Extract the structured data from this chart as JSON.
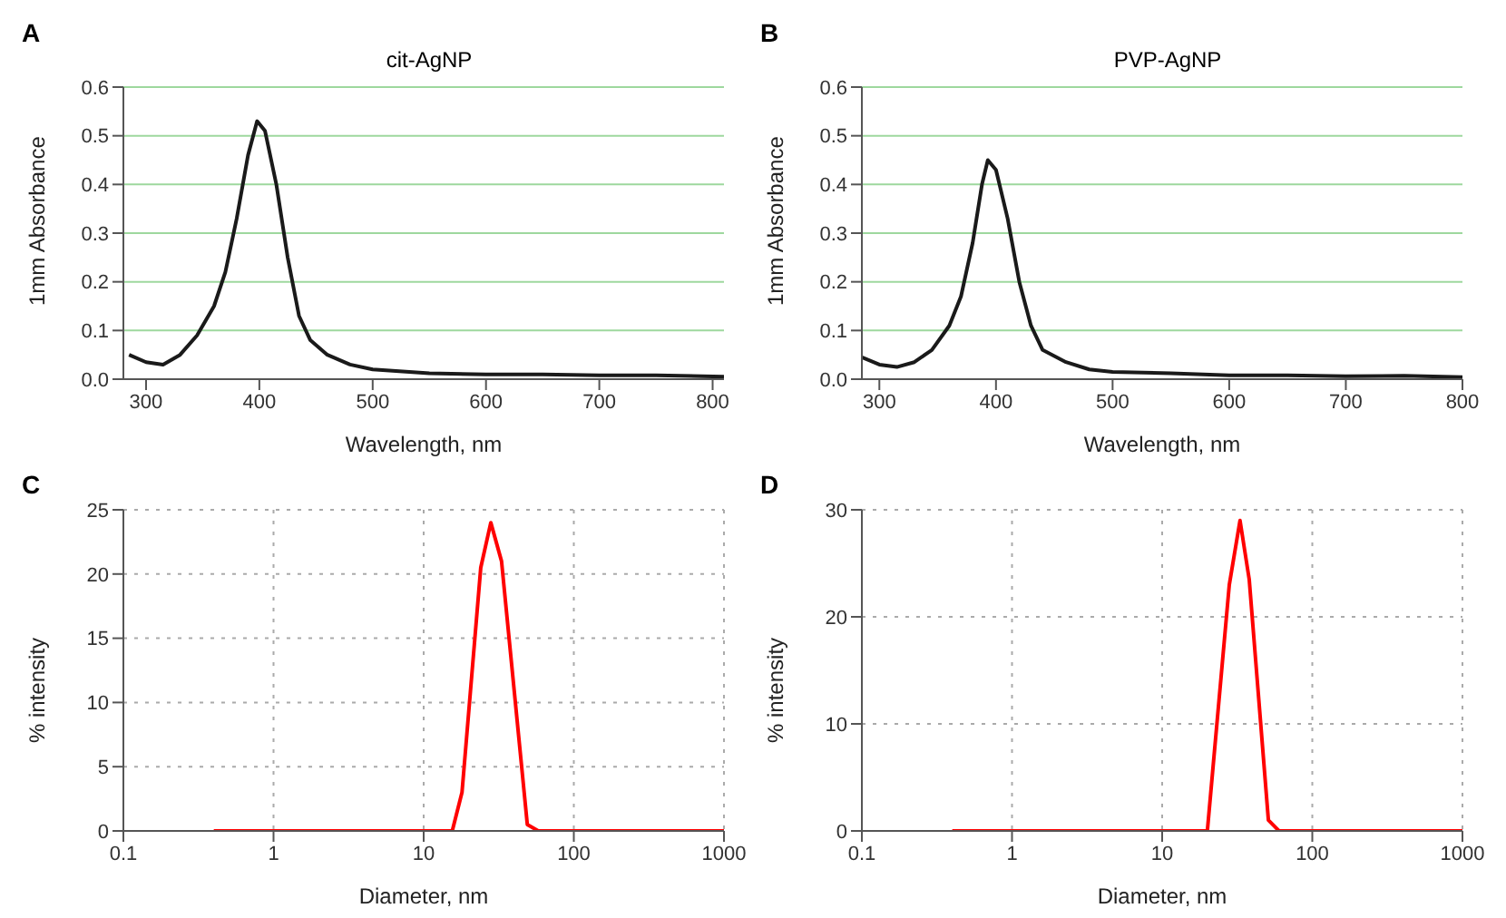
{
  "chart_data": [
    {
      "type": "line",
      "title": "cit-AgNP",
      "xlabel": "Wavelength, nm",
      "ylabel": "1mm Absorbance",
      "annotations": [
        "A"
      ],
      "color": "#1a1a1a",
      "marker": "none",
      "line_style": "solid",
      "grid": "y",
      "legend": false,
      "x": [
        285,
        300,
        315,
        330,
        345,
        360,
        370,
        380,
        390,
        398,
        405,
        415,
        425,
        435,
        445,
        460,
        480,
        500,
        550,
        600,
        650,
        700,
        750,
        810
      ],
      "values": [
        0.05,
        0.035,
        0.03,
        0.05,
        0.09,
        0.15,
        0.22,
        0.33,
        0.46,
        0.53,
        0.51,
        0.4,
        0.25,
        0.13,
        0.08,
        0.05,
        0.03,
        0.02,
        0.012,
        0.01,
        0.01,
        0.008,
        0.008,
        0.005
      ],
      "xlim": [
        280,
        810
      ],
      "xticks": [
        300,
        400,
        500,
        600,
        700,
        800
      ],
      "ylim": [
        0,
        0.6
      ],
      "yticks": [
        {
          "value": 0,
          "label": "0.0"
        },
        0.1,
        0.2,
        0.3,
        0.4,
        0.5,
        0.6
      ]
    },
    {
      "type": "line",
      "title": "PVP-AgNP",
      "xlabel": "Wavelength, nm",
      "ylabel": "1mm Absorbance",
      "annotations": [
        "B"
      ],
      "color": "#1a1a1a",
      "marker": "none",
      "line_style": "solid",
      "grid": "y",
      "legend": false,
      "x": [
        285,
        300,
        315,
        330,
        345,
        360,
        370,
        380,
        388,
        393,
        400,
        410,
        420,
        430,
        440,
        460,
        480,
        500,
        550,
        600,
        650,
        700,
        750,
        800
      ],
      "values": [
        0.045,
        0.03,
        0.025,
        0.035,
        0.06,
        0.11,
        0.17,
        0.28,
        0.4,
        0.45,
        0.43,
        0.33,
        0.2,
        0.11,
        0.06,
        0.035,
        0.02,
        0.015,
        0.012,
        0.008,
        0.008,
        0.006,
        0.007,
        0.004
      ],
      "xlim": [
        285,
        800
      ],
      "xticks": [
        300,
        400,
        500,
        600,
        700,
        800
      ],
      "ylim": [
        0,
        0.6
      ],
      "yticks": [
        {
          "value": 0,
          "label": "0.0"
        },
        0.1,
        0.2,
        0.3,
        0.4,
        0.5,
        0.6
      ]
    },
    {
      "type": "line",
      "xlabel": "Diameter, nm",
      "ylabel": "% intensity",
      "annotations": [
        "C"
      ],
      "color": "#ff0000",
      "marker": "none",
      "line_style": "solid",
      "grid": true,
      "legend": false,
      "log": "x",
      "x": [
        0.4,
        15.5,
        18,
        24,
        28,
        33,
        49,
        58,
        1000
      ],
      "values": [
        0,
        0,
        3,
        20.5,
        24,
        21,
        0.5,
        0,
        0
      ],
      "xlim": [
        0.1,
        1000
      ],
      "xticks": [
        0.1,
        1,
        10,
        100,
        1000
      ],
      "ylim": [
        0,
        25
      ],
      "yticks": [
        0,
        5,
        10,
        15,
        20,
        25
      ]
    },
    {
      "type": "line",
      "xlabel": "Diameter, nm",
      "ylabel": "% intensity",
      "annotations": [
        "D"
      ],
      "color": "#ff0000",
      "marker": "none",
      "line_style": "solid",
      "grid": true,
      "legend": false,
      "log": "x",
      "x": [
        0.4,
        20,
        28,
        33,
        38,
        51,
        60,
        1000
      ],
      "values": [
        0,
        0,
        23,
        29,
        23.5,
        1,
        0,
        0
      ],
      "xlim": [
        0.1,
        1000
      ],
      "xticks": [
        0.1,
        1,
        10,
        100,
        1000
      ],
      "ylim": [
        0,
        30
      ],
      "yticks": [
        0,
        10,
        20,
        30
      ]
    }
  ]
}
